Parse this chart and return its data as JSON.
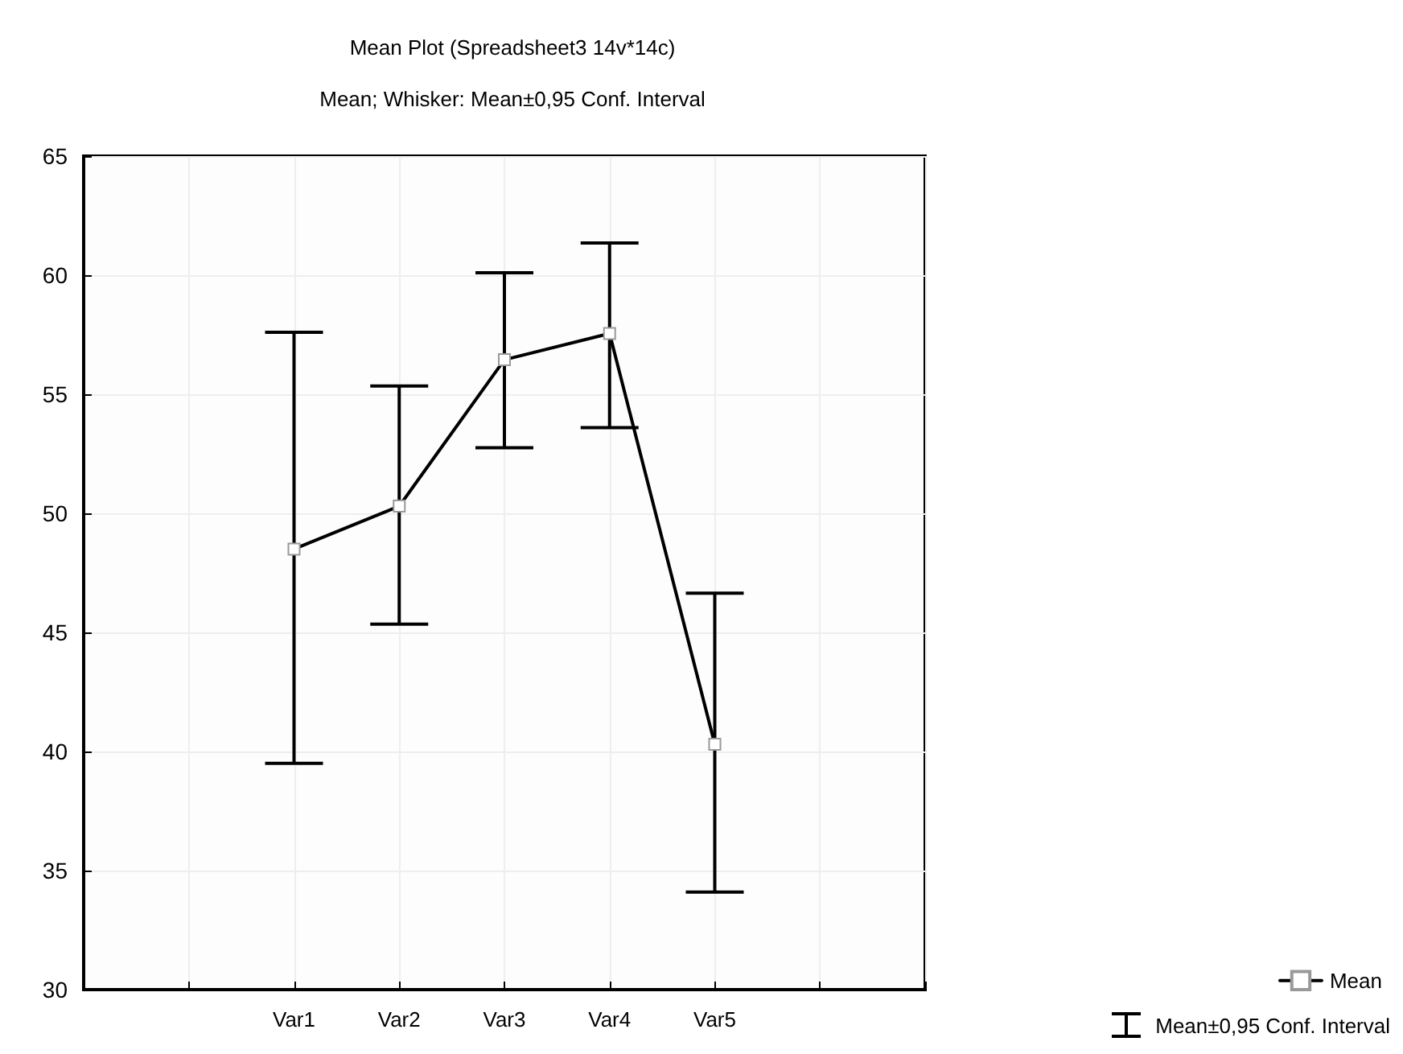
{
  "chart_data": {
    "type": "line",
    "title": "Mean Plot (Spreadsheet3 14v*14c)",
    "subtitle": "Mean; Whisker: Mean±0,95 Conf. Interval",
    "categories": [
      null,
      null,
      "Var1",
      "Var2",
      "Var3",
      "Var4",
      "Var5",
      null,
      null
    ],
    "series": [
      {
        "name": "Mean",
        "color": "#000000",
        "values": [
          null,
          null,
          48.5,
          50.3,
          56.45,
          57.55,
          40.3,
          null,
          null
        ],
        "errors": [
          null,
          null,
          [
            39.5,
            57.6
          ],
          [
            45.35,
            55.35
          ],
          [
            52.75,
            60.1
          ],
          [
            53.6,
            61.35
          ],
          [
            34.1,
            46.65
          ],
          null,
          null
        ]
      }
    ],
    "annotations": [
      "Mean±0,95 Conf. Interval"
    ],
    "ylim": [
      30,
      65
    ],
    "yticks": [
      30,
      35,
      40,
      45,
      50,
      55,
      60,
      65
    ],
    "grid": true,
    "legend": "bottom right",
    "marker": "square",
    "line_style": "solid"
  }
}
